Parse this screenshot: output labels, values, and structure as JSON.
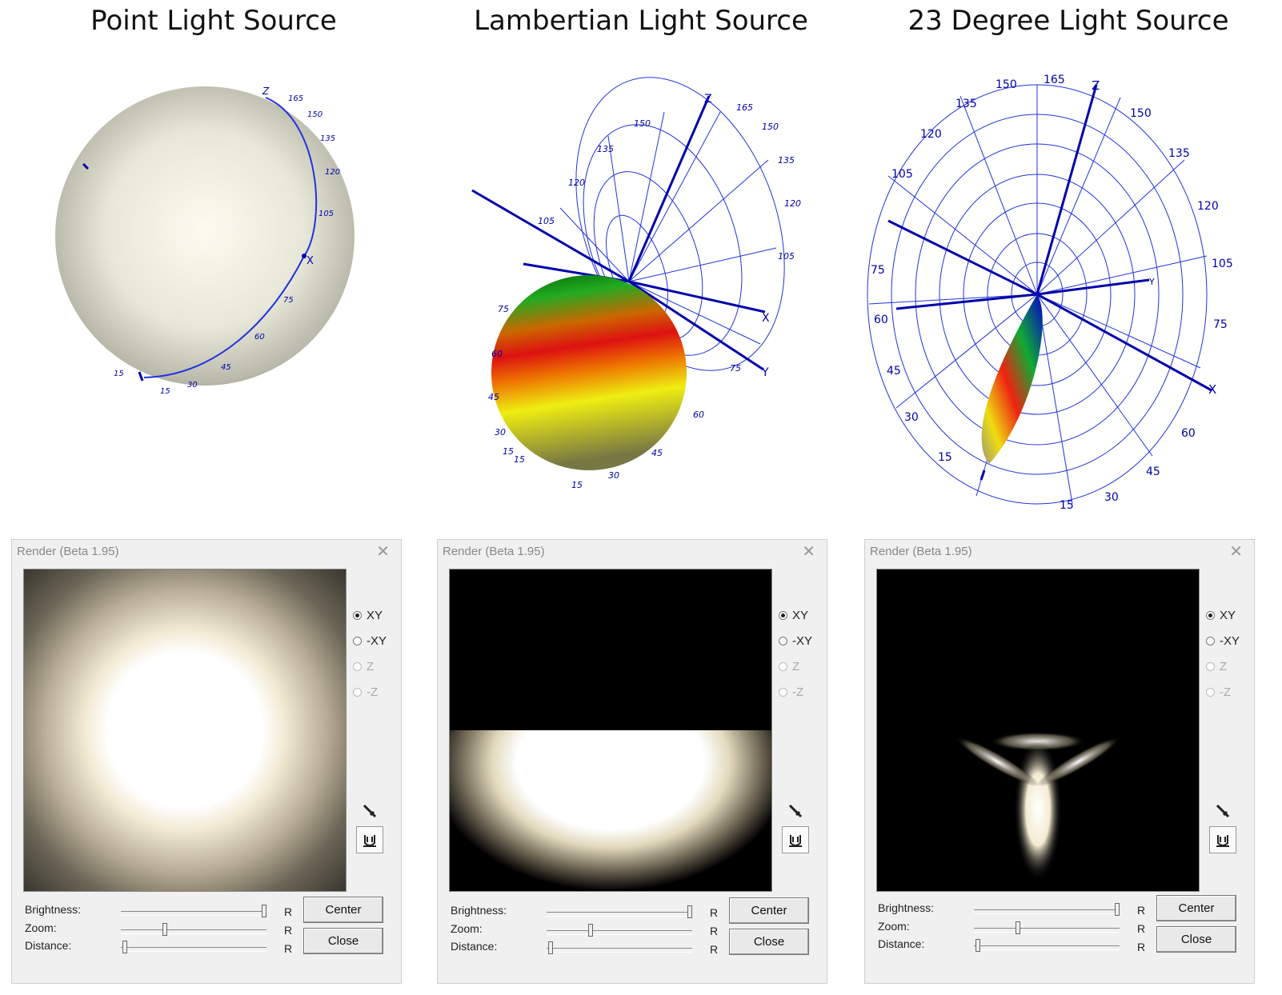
{
  "titles": [
    "Point Light Source",
    "Lambertian Light Source",
    "23 Degree Light Source"
  ],
  "axes": {
    "x": "X",
    "y": "Y",
    "z": "Z"
  },
  "plot1_ticks": [
    "165",
    "150",
    "135",
    "120",
    "105",
    "75",
    "60",
    "45",
    "30",
    "15",
    "15"
  ],
  "plot2_ticks": [
    "165",
    "150",
    "135",
    "120",
    "105",
    "75",
    "60",
    "45",
    "30",
    "15",
    "15",
    "150",
    "135",
    "120",
    "105",
    "75",
    "60",
    "45",
    "30",
    "15"
  ],
  "plot3_ticks": [
    "165",
    "150",
    "135",
    "120",
    "105",
    "75",
    "60",
    "45",
    "30",
    "15",
    "150",
    "135",
    "120",
    "105",
    "75",
    "60",
    "45",
    "30",
    "15"
  ],
  "dialogs": [
    {
      "title": "Render (Beta 1.95)",
      "close": "X",
      "radios": [
        "XY",
        "-XY",
        "Z",
        "-Z"
      ],
      "brightness": "Brightness:",
      "zoom": "Zoom:",
      "distance": "Distance:",
      "r": "R",
      "center": "Center",
      "close_btn": "Close"
    },
    {
      "title": "Render (Beta 1.95)",
      "close": "X",
      "radios": [
        "XY",
        "-XY",
        "Z",
        "-Z"
      ],
      "brightness": "Brightness:",
      "zoom": "Zoom:",
      "distance": "Distance:",
      "r": "R",
      "center": "Center",
      "close_btn": "Close"
    },
    {
      "title": "Render (Beta 1.95)",
      "close": "X",
      "radios": [
        "XY",
        "-XY",
        "Z",
        "-Z"
      ],
      "brightness": "Brightness:",
      "zoom": "Zoom:",
      "distance": "Distance:",
      "r": "R",
      "center": "Center",
      "close_btn": "Close"
    }
  ],
  "slider_levels": {
    "brightness": 1.0,
    "zoom": 0.3,
    "distance": 0.0
  },
  "colors": {
    "axis": "#0000aa",
    "grid": "#2233dd"
  }
}
